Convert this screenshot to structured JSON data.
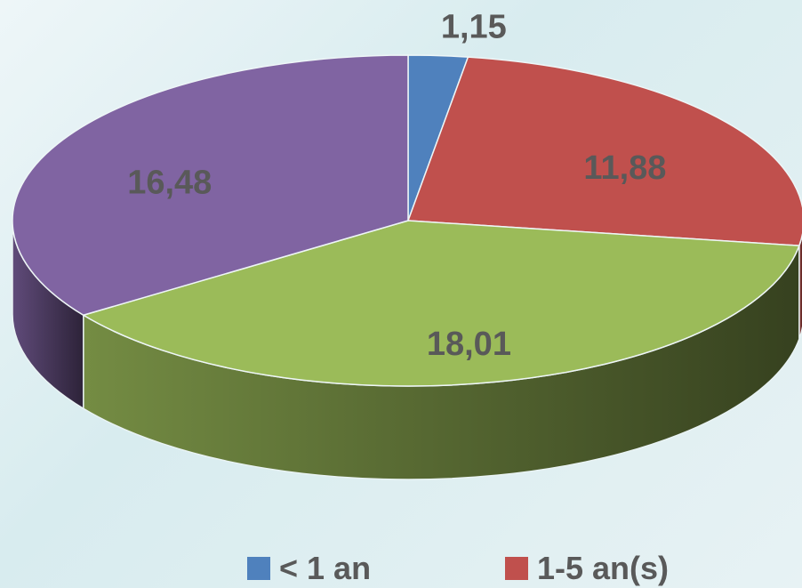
{
  "chart_data": {
    "type": "pie",
    "labels": [
      "< 1 an",
      "1-5 an(s)",
      "",
      ""
    ],
    "values": [
      1.15,
      11.88,
      18.01,
      16.48
    ],
    "data_labels": [
      "1,15",
      "11,88",
      "18,01",
      "16,48"
    ],
    "colors": [
      "#4f81bd",
      "#c0504d",
      "#9bbb59",
      "#8064a2"
    ],
    "style": "3d",
    "legend_position": "bottom"
  },
  "legend": [
    {
      "label": "< 1 an",
      "color": "#4f81bd"
    },
    {
      "label": "1-5 an(s)",
      "color": "#c0504d"
    }
  ]
}
